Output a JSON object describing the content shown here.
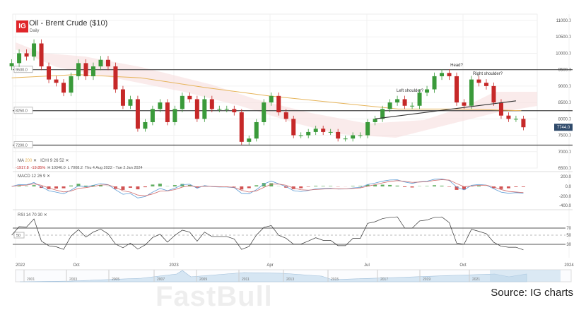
{
  "header": {
    "logo": "IG",
    "title": "Oil - Brent Crude ($10)",
    "interval": "Daily"
  },
  "indicators": {
    "ma_label": "MA",
    "ma_period": "200",
    "ichi_label": "ICHI",
    "ichi_params": "9 26 52",
    "stats": {
      "change": "-1917.8",
      "change_pct": "-19.85%",
      "high": "H 10346.0",
      "low": "L 7008.2",
      "range": "Thu 4 Aug 2022 - Tue 2 Jan 2024"
    },
    "macd_label": "MACD",
    "macd_params": "12 26 9",
    "rsi_label": "RSI",
    "rsi_params": "14 70 30",
    "close_icon": "close-x-icon"
  },
  "colors": {
    "up": "#3a9a3a",
    "down": "#c62828",
    "ma": "#e6b45a",
    "cloud": "#f6dede",
    "last_price_bg": "#2f4a6b",
    "macd": "#5b9bd5",
    "signal": "#d06a6a"
  },
  "chart_data": {
    "type": "candlestick",
    "title": "Oil - Brent Crude ($10)",
    "y_ticks": [
      "11000.0",
      "10500.0",
      "10000.0",
      "9500.0",
      "9000.0",
      "8500.0",
      "8000.0",
      "7500.0",
      "7000.0",
      "6500.0"
    ],
    "ylim": [
      6500,
      11000
    ],
    "x_ticks": [
      "2022",
      "Oct",
      "2023",
      "Apr",
      "Jul",
      "Oct",
      "2024"
    ],
    "last_price": "7744.0",
    "horizontal_levels": [
      {
        "value": 9500,
        "label": "9500.0"
      },
      {
        "value": 8250,
        "label": "8250.0"
      },
      {
        "value": 7200,
        "label": "7200.0"
      }
    ],
    "annotations": [
      "Head?",
      "Left shoulder?",
      "Right shoulder?"
    ],
    "neckline": [
      {
        "date": "2023-07-10",
        "value": 8000
      },
      {
        "date": "2023-11-20",
        "value": 8550
      }
    ],
    "start_date": "2022-08-01",
    "weekly_close": [
      9700,
      10000,
      9900,
      10300,
      9600,
      9200,
      9100,
      8800,
      9300,
      9700,
      9300,
      9600,
      9800,
      9600,
      8900,
      8400,
      8600,
      7700,
      7900,
      8300,
      8500,
      7900,
      8300,
      8700,
      8600,
      8000,
      8600,
      8300,
      8300,
      8300,
      8200,
      7300,
      7400,
      7900,
      8500,
      8700,
      8200,
      8000,
      7500,
      7500,
      7600,
      7700,
      7600,
      7600,
      7400,
      7400,
      7500,
      7500,
      7900,
      8000,
      8300,
      8500,
      8600,
      8400,
      8400,
      8800,
      8900,
      9300,
      9400,
      9300,
      8500,
      8400,
      9200,
      9100,
      9000,
      8500,
      8100,
      8000,
      8000,
      7744
    ],
    "ma200": [
      {
        "date": "2022-08-01",
        "value": 9250
      },
      {
        "date": "2022-10-01",
        "value": 9350
      },
      {
        "date": "2022-12-01",
        "value": 9250
      },
      {
        "date": "2023-02-01",
        "value": 8950
      },
      {
        "date": "2023-04-01",
        "value": 8700
      },
      {
        "date": "2023-06-01",
        "value": 8500
      },
      {
        "date": "2023-08-01",
        "value": 8300
      },
      {
        "date": "2023-10-01",
        "value": 8300
      },
      {
        "date": "2023-11-25",
        "value": 8250
      }
    ],
    "macd_ticks": [
      "200.0",
      "0.0",
      "-200.0",
      "-400.0"
    ],
    "rsi_ticks": [
      "70",
      "50",
      "30"
    ],
    "rsi_level_label": "50"
  },
  "navigator": {
    "years": [
      "2001",
      "2003",
      "2005",
      "2007",
      "2009",
      "2011",
      "2013",
      "2015",
      "2017",
      "2019",
      "2021"
    ]
  },
  "source": "Source: IG charts",
  "watermark": "FastBull"
}
